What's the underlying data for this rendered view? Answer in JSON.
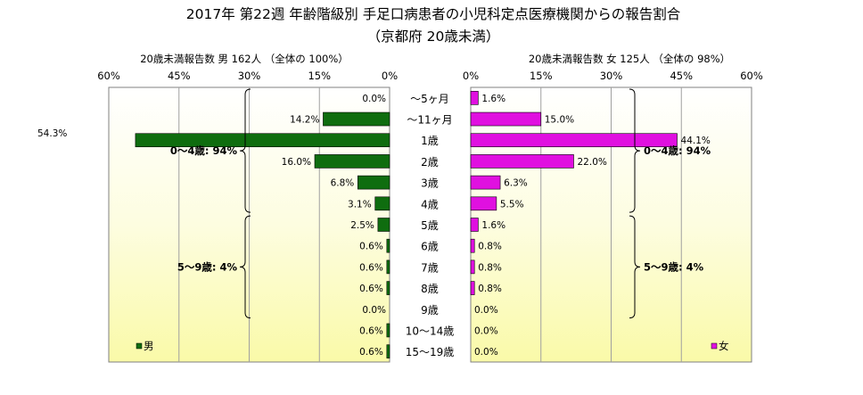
{
  "chart_data": {
    "type": "bar",
    "title": "2017年 第22週 年齢階級別 手足口病患者の小児科定点医療機関からの報告割合",
    "subtitle": "（京都府 20歳未満）",
    "categories": [
      "～5ヶ月",
      "～11ヶ月",
      "1歳",
      "2歳",
      "3歳",
      "4歳",
      "5歳",
      "6歳",
      "7歳",
      "8歳",
      "9歳",
      "10～14歳",
      "15～19歳"
    ],
    "xlim": [
      0,
      60
    ],
    "x_ticks": [
      "0%",
      "15%",
      "30%",
      "45%",
      "60%"
    ],
    "grid": true,
    "series": [
      {
        "name": "男",
        "side": "left",
        "header": "20歳未満報告数  男  162人 （全体の  100%）",
        "color": "#0f6d0f",
        "values": [
          0.0,
          14.2,
          54.3,
          16.0,
          6.8,
          3.1,
          2.5,
          0.6,
          0.6,
          0.6,
          0.0,
          0.6,
          0.6
        ],
        "labels": [
          "0.0%",
          "14.2%",
          "54.3%",
          "16.0%",
          "6.8%",
          "3.1%",
          "2.5%",
          "0.6%",
          "0.6%",
          "0.6%",
          "0.0%",
          "0.6%",
          "0.6%"
        ],
        "legend_label": "男",
        "brackets": [
          {
            "text": "0～4歳: 94%",
            "from": 0,
            "to": 5
          },
          {
            "text": "5～9歳: 4%",
            "from": 6,
            "to": 10
          }
        ]
      },
      {
        "name": "女",
        "side": "right",
        "header": "20歳未満報告数        女  125人 （全体の   98%）",
        "color": "#e010e0",
        "values": [
          1.6,
          15.0,
          44.1,
          22.0,
          6.3,
          5.5,
          1.6,
          0.8,
          0.8,
          0.8,
          0.0,
          0.0,
          0.0
        ],
        "labels": [
          "1.6%",
          "15.0%",
          "44.1%",
          "22.0%",
          "6.3%",
          "5.5%",
          "1.6%",
          "0.8%",
          "0.8%",
          "0.8%",
          "0.0%",
          "0.0%",
          "0.0%"
        ],
        "legend_label": "女",
        "brackets": [
          {
            "text": "0～4歳: 94%",
            "from": 0,
            "to": 5
          },
          {
            "text": "5～9歳: 4%",
            "from": 6,
            "to": 10
          }
        ]
      }
    ]
  }
}
